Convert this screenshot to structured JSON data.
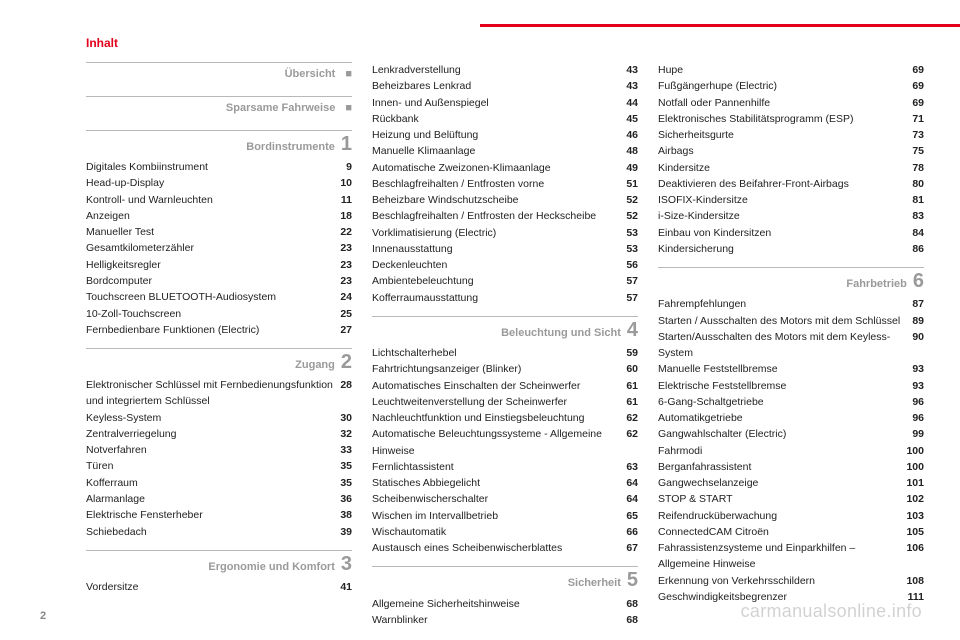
{
  "header": {
    "title": "Inhalt"
  },
  "pageNumber": "2",
  "watermark": "carmanualsonline.info",
  "col1": {
    "sections": [
      {
        "title": "Übersicht",
        "marker": "■",
        "items": []
      },
      {
        "title": "Sparsame Fahrweise",
        "marker": "■",
        "items": []
      },
      {
        "title": "Bordinstrumente",
        "num": "1",
        "items": [
          {
            "label": "Digitales Kombiinstrument",
            "pg": "9"
          },
          {
            "label": "Head-up-Display",
            "pg": "10"
          },
          {
            "label": "Kontroll- und Warnleuchten",
            "pg": "11"
          },
          {
            "label": "Anzeigen",
            "pg": "18"
          },
          {
            "label": "Manueller Test",
            "pg": "22"
          },
          {
            "label": "Gesamtkilometerzähler",
            "pg": "23"
          },
          {
            "label": "Helligkeitsregler",
            "pg": "23"
          },
          {
            "label": "Bordcomputer",
            "pg": "23"
          },
          {
            "label": "Touchscreen BLUETOOTH-Audiosystem",
            "pg": "24"
          },
          {
            "label": "10-Zoll-Touchscreen",
            "pg": "25"
          },
          {
            "label": "Fernbedienbare Funktionen (Electric)",
            "pg": "27"
          }
        ]
      },
      {
        "title": "Zugang",
        "num": "2",
        "items": [
          {
            "label": "Elektronischer Schlüssel mit Fernbedienungsfunktion und integriertem Schlüssel",
            "pg": "28"
          },
          {
            "label": "Keyless-System",
            "pg": "30"
          },
          {
            "label": "Zentralverriegelung",
            "pg": "32"
          },
          {
            "label": "Notverfahren",
            "pg": "33"
          },
          {
            "label": "Türen",
            "pg": "35"
          },
          {
            "label": "Kofferraum",
            "pg": "35"
          },
          {
            "label": "Alarmanlage",
            "pg": "36"
          },
          {
            "label": "Elektrische Fensterheber",
            "pg": "38"
          },
          {
            "label": "Schiebedach",
            "pg": "39"
          }
        ]
      },
      {
        "title": "Ergonomie und Komfort",
        "num": "3",
        "items": [
          {
            "label": "Vordersitze",
            "pg": "41"
          }
        ]
      }
    ]
  },
  "col2": {
    "leading": [
      {
        "label": "Lenkradverstellung",
        "pg": "43"
      },
      {
        "label": "Beheizbares Lenkrad",
        "pg": "43"
      },
      {
        "label": "Innen- und Außenspiegel",
        "pg": "44"
      },
      {
        "label": "Rückbank",
        "pg": "45"
      },
      {
        "label": "Heizung und Belüftung",
        "pg": "46"
      },
      {
        "label": "Manuelle Klimaanlage",
        "pg": "48"
      },
      {
        "label": "Automatische Zweizonen-Klimaanlage",
        "pg": "49"
      },
      {
        "label": "Beschlagfreihalten / Entfrosten vorne",
        "pg": "51"
      },
      {
        "label": "Beheizbare Windschutzscheibe",
        "pg": "52"
      },
      {
        "label": "Beschlagfreihalten / Entfrosten der Heckscheibe",
        "pg": "52"
      },
      {
        "label": "Vorklimatisierung (Electric)",
        "pg": "53"
      },
      {
        "label": "Innenausstattung",
        "pg": "53"
      },
      {
        "label": "Deckenleuchten",
        "pg": "56"
      },
      {
        "label": "Ambientebeleuchtung",
        "pg": "57"
      },
      {
        "label": "Kofferraumausstattung",
        "pg": "57"
      }
    ],
    "sections": [
      {
        "title": "Beleuchtung und Sicht",
        "num": "4",
        "items": [
          {
            "label": "Lichtschalterhebel",
            "pg": "59"
          },
          {
            "label": "Fahrtrichtungsanzeiger (Blinker)",
            "pg": "60"
          },
          {
            "label": "Automatisches Einschalten der Scheinwerfer",
            "pg": "61"
          },
          {
            "label": "Leuchtweitenverstellung der Scheinwerfer",
            "pg": "61"
          },
          {
            "label": "Nachleuchtfunktion und Einstiegsbeleuchtung",
            "pg": "62"
          },
          {
            "label": "Automatische Beleuchtungssysteme - Allgemeine Hinweise",
            "pg": "62"
          },
          {
            "label": "Fernlichtassistent",
            "pg": "63"
          },
          {
            "label": "Statisches Abbiegelicht",
            "pg": "64"
          },
          {
            "label": "Scheibenwischerschalter",
            "pg": "64"
          },
          {
            "label": "Wischen im Intervallbetrieb",
            "pg": "65"
          },
          {
            "label": "Wischautomatik",
            "pg": "66"
          },
          {
            "label": "Austausch eines Scheibenwischerblattes",
            "pg": "67"
          }
        ]
      },
      {
        "title": "Sicherheit",
        "num": "5",
        "items": [
          {
            "label": "Allgemeine Sicherheitshinweise",
            "pg": "68"
          },
          {
            "label": "Warnblinker",
            "pg": "68"
          }
        ]
      }
    ]
  },
  "col3": {
    "leading": [
      {
        "label": "Hupe",
        "pg": "69"
      },
      {
        "label": "Fußgängerhupe (Electric)",
        "pg": "69"
      },
      {
        "label": "Notfall oder Pannenhilfe",
        "pg": "69"
      },
      {
        "label": "Elektronisches Stabilitätsprogramm (ESP)",
        "pg": "71"
      },
      {
        "label": "Sicherheitsgurte",
        "pg": "73"
      },
      {
        "label": "Airbags",
        "pg": "75"
      },
      {
        "label": "Kindersitze",
        "pg": "78"
      },
      {
        "label": "Deaktivieren des Beifahrer-Front-Airbags",
        "pg": "80"
      },
      {
        "label": "ISOFIX-Kindersitze",
        "pg": "81"
      },
      {
        "label": "i-Size-Kindersitze",
        "pg": "83"
      },
      {
        "label": "Einbau von Kindersitzen",
        "pg": "84"
      },
      {
        "label": "Kindersicherung",
        "pg": "86"
      }
    ],
    "sections": [
      {
        "title": "Fahrbetrieb",
        "num": "6",
        "items": [
          {
            "label": "Fahrempfehlungen",
            "pg": "87"
          },
          {
            "label": "Starten / Ausschalten des Motors mit dem Schlüssel",
            "pg": "89"
          },
          {
            "label": "Starten/Ausschalten des Motors mit dem Keyless-System",
            "pg": "90"
          },
          {
            "label": "Manuelle Feststellbremse",
            "pg": "93"
          },
          {
            "label": "Elektrische Feststellbremse",
            "pg": "93"
          },
          {
            "label": "6-Gang-Schaltgetriebe",
            "pg": "96"
          },
          {
            "label": "Automatikgetriebe",
            "pg": "96"
          },
          {
            "label": "Gangwahlschalter (Electric)",
            "pg": "99"
          },
          {
            "label": "Fahrmodi",
            "pg": "100"
          },
          {
            "label": "Berganfahrassistent",
            "pg": "100"
          },
          {
            "label": "Gangwechselanzeige",
            "pg": "101"
          },
          {
            "label": "STOP & START",
            "pg": "102"
          },
          {
            "label": "Reifendrucküberwachung",
            "pg": "103"
          },
          {
            "label": "ConnectedCAM Citroën",
            "pg": "105"
          },
          {
            "label": "Fahrassistenzsysteme und Einparkhilfen – Allgemeine Hinweise",
            "pg": "106"
          },
          {
            "label": "Erkennung von Verkehrsschildern",
            "pg": "108"
          },
          {
            "label": "Geschwindigkeitsbegrenzer",
            "pg": "111"
          }
        ]
      }
    ]
  }
}
